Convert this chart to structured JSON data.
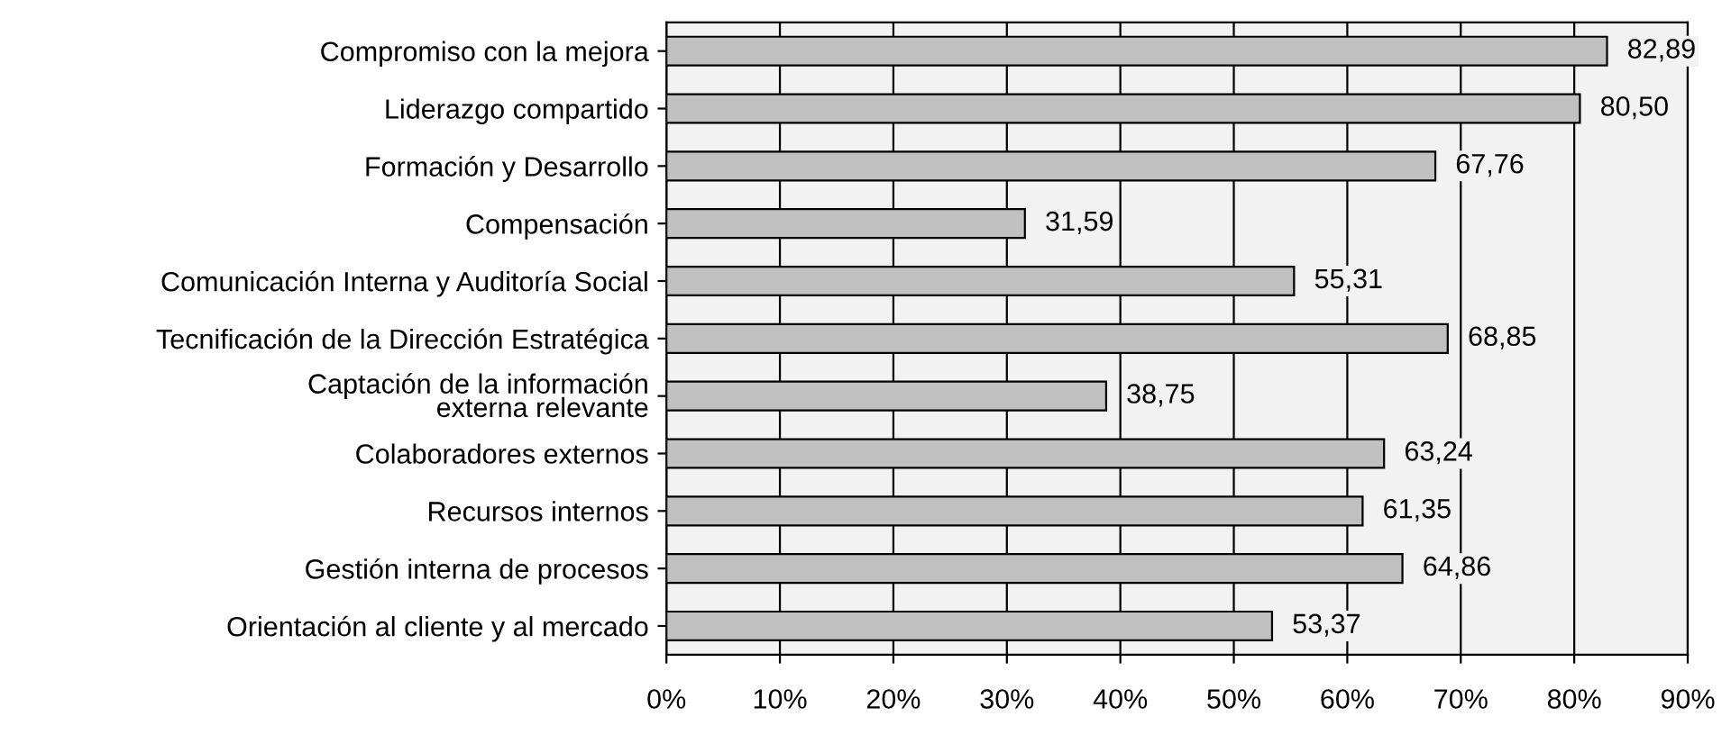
{
  "chart_data": {
    "type": "bar",
    "orientation": "horizontal",
    "categories": [
      "Compromiso con la mejora",
      "Liderazgo compartido",
      "Formación y Desarrollo",
      "Compensación",
      "Comunicación Interna y Auditoría Social",
      "Tecnificación de la Dirección Estratégica",
      "Captación de la información\nexterna relevante",
      "Colaboradores externos",
      "Recursos internos",
      "Gestión interna de procesos",
      "Orientación al cliente y al mercado"
    ],
    "values": [
      82.89,
      80.5,
      67.76,
      31.59,
      55.31,
      68.85,
      38.75,
      63.24,
      61.35,
      64.86,
      53.37
    ],
    "value_labels": [
      "82,89",
      "80,50",
      "67,76",
      "31,59",
      "55,31",
      "68,85",
      "38,75",
      "63,24",
      "61,35",
      "64,86",
      "53,37"
    ],
    "color": "#c0c0c0",
    "xlim": [
      0,
      90
    ],
    "xticks": [
      {
        "value": 0,
        "label": "0%"
      },
      {
        "value": 10,
        "label": "10%"
      },
      {
        "value": 20,
        "label": "20%"
      },
      {
        "value": 30,
        "label": "30%"
      },
      {
        "value": 40,
        "label": "40%"
      },
      {
        "value": 50,
        "label": "50%"
      },
      {
        "value": 60,
        "label": "60%"
      },
      {
        "value": 70,
        "label": "70%"
      },
      {
        "value": 80,
        "label": "80%"
      },
      {
        "value": 90,
        "label": "90%"
      }
    ],
    "grid": "x"
  }
}
